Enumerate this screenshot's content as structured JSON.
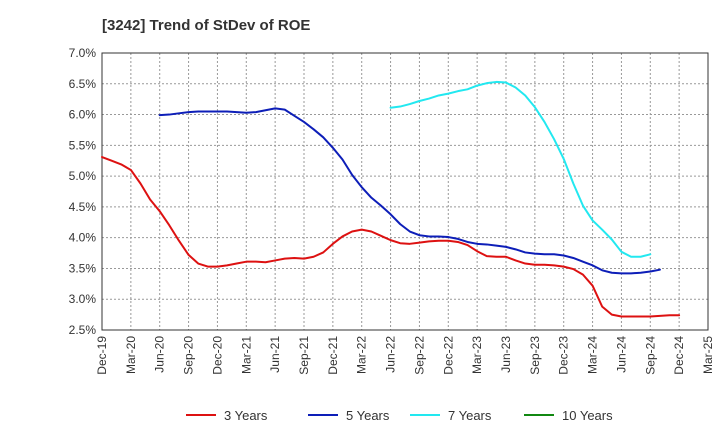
{
  "chart_data": {
    "type": "line",
    "title": "[3242]  Trend of StDev of ROE",
    "xlabel": "",
    "ylabel": "",
    "x_ticks": [
      "Dec-19",
      "Mar-20",
      "Jun-20",
      "Sep-20",
      "Dec-20",
      "Mar-21",
      "Jun-21",
      "Sep-21",
      "Dec-21",
      "Mar-22",
      "Jun-22",
      "Sep-22",
      "Dec-22",
      "Mar-23",
      "Jun-23",
      "Sep-23",
      "Dec-23",
      "Mar-24",
      "Jun-24",
      "Sep-24",
      "Dec-24",
      "Mar-25"
    ],
    "y_ticks": [
      "2.5%",
      "3.0%",
      "3.5%",
      "4.0%",
      "4.5%",
      "5.0%",
      "5.5%",
      "6.0%",
      "6.5%",
      "7.0%"
    ],
    "ylim": [
      2.5,
      7.0
    ],
    "grid": true,
    "legend_position": "bottom",
    "colors": {
      "3 Years": "#dd1111",
      "5 Years": "#0d1eb8",
      "7 Years": "#22e8f0",
      "10 Years": "#118811"
    },
    "series": [
      {
        "name": "3 Years",
        "start": "Dec-19",
        "values": [
          5.31,
          5.25,
          5.19,
          5.1,
          4.88,
          4.62,
          4.43,
          4.2,
          3.95,
          3.72,
          3.58,
          3.53,
          3.53,
          3.55,
          3.58,
          3.61,
          3.61,
          3.6,
          3.63,
          3.66,
          3.67,
          3.66,
          3.69,
          3.76,
          3.9,
          4.02,
          4.1,
          4.13,
          4.1,
          4.03,
          3.96,
          3.91,
          3.9,
          3.92,
          3.94,
          3.95,
          3.95,
          3.93,
          3.88,
          3.78,
          3.7,
          3.69,
          3.69,
          3.63,
          3.58,
          3.56,
          3.56,
          3.55,
          3.53,
          3.49,
          3.4,
          3.22,
          2.88,
          2.75,
          2.72,
          2.72,
          2.72,
          2.72,
          2.73,
          2.74,
          2.74
        ]
      },
      {
        "name": "5 Years",
        "start": "Jun-20",
        "values": [
          5.99,
          6.0,
          6.02,
          6.04,
          6.05,
          6.05,
          6.05,
          6.05,
          6.04,
          6.03,
          6.04,
          6.07,
          6.1,
          6.08,
          5.98,
          5.88,
          5.76,
          5.63,
          5.46,
          5.27,
          5.02,
          4.82,
          4.65,
          4.52,
          4.38,
          4.22,
          4.1,
          4.04,
          4.02,
          4.02,
          4.01,
          3.98,
          3.93,
          3.9,
          3.89,
          3.87,
          3.85,
          3.81,
          3.76,
          3.74,
          3.73,
          3.73,
          3.71,
          3.67,
          3.61,
          3.55,
          3.47,
          3.43,
          3.42,
          3.42,
          3.43,
          3.45,
          3.48
        ]
      },
      {
        "name": "7 Years",
        "start": "Jun-22",
        "values": [
          6.11,
          6.13,
          6.17,
          6.22,
          6.26,
          6.31,
          6.34,
          6.38,
          6.41,
          6.47,
          6.51,
          6.53,
          6.52,
          6.44,
          6.31,
          6.12,
          5.88,
          5.6,
          5.28,
          4.88,
          4.52,
          4.28,
          4.13,
          3.97,
          3.77,
          3.69,
          3.69,
          3.73
        ]
      },
      {
        "name": "10 Years",
        "start": "Dec-24",
        "values": []
      }
    ]
  }
}
